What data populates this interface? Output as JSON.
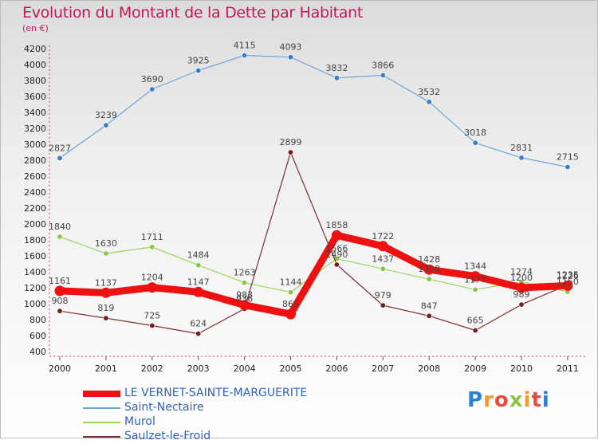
{
  "title": "Evolution du Montant de la Dette par Habitant",
  "unit_label": "(en €)",
  "logo": {
    "letters": [
      "P",
      "r",
      "o",
      "x",
      "i",
      "t",
      "i"
    ],
    "colors": [
      "#2a7fd4",
      "#f29a2e",
      "#e94e3c",
      "#8bc34a",
      "#f29a2e",
      "#e94e3c",
      "#2a7fd4"
    ]
  },
  "chart_data": {
    "type": "line",
    "title": "Evolution du Montant de la Dette par Habitant",
    "ylabel": "(en €)",
    "xlabel": "",
    "x": [
      "2000",
      "2001",
      "2002",
      "2003",
      "2004",
      "2005",
      "2006",
      "2007",
      "2008",
      "2009",
      "2010",
      "2011"
    ],
    "ylim": [
      400,
      4200
    ],
    "yticks": [
      400,
      600,
      800,
      1000,
      1200,
      1400,
      1600,
      1800,
      2000,
      2200,
      2400,
      2600,
      2800,
      3000,
      3200,
      3400,
      3600,
      3800,
      4000,
      4200
    ],
    "grid": false,
    "legend_position": "bottom-left",
    "series": [
      {
        "name": "Saint-Nectaire",
        "color": "#6fa3d8",
        "marker_color": "#3a7cc2",
        "values": [
          2827,
          3239,
          3690,
          3925,
          4115,
          4093,
          3832,
          3866,
          3532,
          3018,
          2831,
          2715
        ]
      },
      {
        "name": "Murol",
        "color": "#9ad65a",
        "marker_color": "#8bc34a",
        "values": [
          1840,
          1630,
          1711,
          1484,
          1263,
          1144,
          1566,
          1437,
          1308,
          1177,
          1274,
          1150
        ]
      },
      {
        "name": "Saulzet-le-Froid",
        "color": "#7a2e2e",
        "marker_color": "#6b1f1f",
        "values": [
          908,
          819,
          725,
          624,
          936,
          2899,
          1490,
          979,
          847,
          665,
          989,
          1235
        ]
      },
      {
        "name": "LE VERNET-SAINTE-MARGUERITE",
        "color": "#ee1111",
        "marker_color": "#ee1111",
        "values": [
          1161,
          1137,
          1204,
          1147,
          983,
          869,
          1858,
          1722,
          1428,
          1344,
          1200,
          1226
        ]
      }
    ],
    "legend_order": [
      "LE VERNET-SAINTE-MARGUERITE",
      "Saint-Nectaire",
      "Murol",
      "Saulzet-le-Froid"
    ]
  }
}
